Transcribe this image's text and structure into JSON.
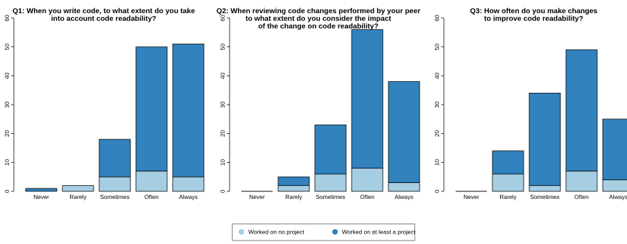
{
  "colors": {
    "no_project": "#a6cee3",
    "at_least_one": "#3182bd",
    "stroke": "#000000"
  },
  "legend": {
    "placement": "bottom-center",
    "items": [
      {
        "label": "Worked on no project",
        "color": "#a6cee3"
      },
      {
        "label": "Worked on at least a project",
        "color": "#3182bd"
      }
    ]
  },
  "chart_data": [
    {
      "type": "bar",
      "stacked": true,
      "title": [
        "Q1: When you write code, to what extent do you take",
        "into account code readability?"
      ],
      "categories": [
        "Never",
        "Rarely",
        "Sometimes",
        "Often",
        "Always"
      ],
      "series": [
        {
          "name": "Worked on no project",
          "values": [
            0,
            2,
            5,
            7,
            5
          ]
        },
        {
          "name": "Worked on at least a project",
          "values": [
            1,
            0,
            13,
            43,
            46
          ]
        }
      ],
      "ylim": [
        0,
        60
      ],
      "yticks": [
        0,
        10,
        20,
        30,
        40,
        50,
        60
      ]
    },
    {
      "type": "bar",
      "stacked": true,
      "title": [
        "Q2: When reviewing code changes performed by your peer",
        "to what extent do you consider the impact",
        "of the change on code readability?"
      ],
      "categories": [
        "Never",
        "Rarely",
        "Sometimes",
        "Often",
        "Always"
      ],
      "series": [
        {
          "name": "Worked on no project",
          "values": [
            0,
            2,
            6,
            8,
            3
          ]
        },
        {
          "name": "Worked on at least a project",
          "values": [
            0,
            3,
            17,
            48,
            35
          ]
        }
      ],
      "ylim": [
        0,
        60
      ],
      "yticks": [
        0,
        10,
        20,
        30,
        40,
        50,
        60
      ]
    },
    {
      "type": "bar",
      "stacked": true,
      "title": [
        "Q3: How often do you make changes",
        "to improve code readability?"
      ],
      "categories": [
        "Never",
        "Rarely",
        "Sometimes",
        "Often",
        "Always"
      ],
      "series": [
        {
          "name": "Worked on no project",
          "values": [
            0,
            6,
            2,
            7,
            4
          ]
        },
        {
          "name": "Worked on at least a project",
          "values": [
            0,
            8,
            32,
            42,
            21
          ]
        }
      ],
      "ylim": [
        0,
        60
      ],
      "yticks": [
        0,
        10,
        20,
        30,
        40,
        50,
        60
      ]
    }
  ]
}
